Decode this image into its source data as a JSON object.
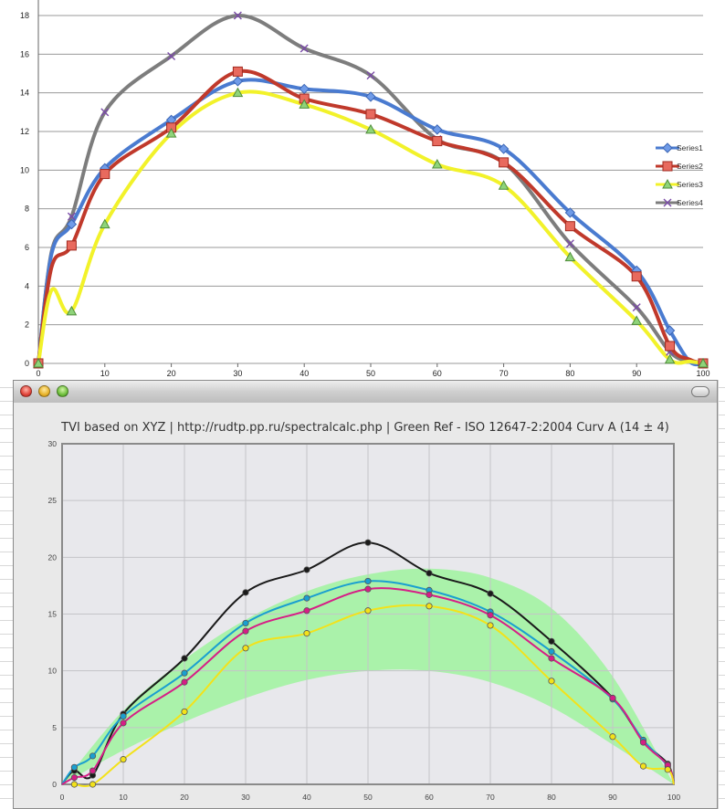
{
  "chart_data": [
    {
      "type": "line",
      "title": "",
      "xlabel": "",
      "ylabel": "",
      "xlim": [
        0,
        100
      ],
      "ylim": [
        0,
        18
      ],
      "x_ticks": [
        "0",
        "10",
        "20",
        "30",
        "40",
        "50",
        "60",
        "70",
        "80",
        "90",
        "100"
      ],
      "y_ticks": [
        "0",
        "2",
        "4",
        "6",
        "8",
        "10",
        "12",
        "14",
        "16",
        "18"
      ],
      "grid": "horizontal",
      "legend": "right",
      "x": [
        0,
        2,
        5,
        10,
        20,
        30,
        40,
        50,
        60,
        70,
        80,
        90,
        95,
        98,
        100
      ],
      "series": [
        {
          "name": "Series1",
          "color": "#4a7bd0",
          "marker": "diamond",
          "values": [
            0,
            5.7,
            7.2,
            10.1,
            12.6,
            14.6,
            14.2,
            13.8,
            12.1,
            11.1,
            7.8,
            4.8,
            1.7,
            0.1,
            0
          ]
        },
        {
          "name": "Series2",
          "color": "#c0392b",
          "marker": "square",
          "values": [
            0,
            5.0,
            6.1,
            9.8,
            12.2,
            15.1,
            13.7,
            12.9,
            11.5,
            10.4,
            7.1,
            4.5,
            0.9,
            0.2,
            0
          ]
        },
        {
          "name": "Series3",
          "color": "#f2f22a",
          "marker": "triangle",
          "values": [
            0,
            3.8,
            2.7,
            7.2,
            11.9,
            14.0,
            13.4,
            12.1,
            10.3,
            9.2,
            5.5,
            2.2,
            0.2,
            0.1,
            0
          ]
        },
        {
          "name": "Series4",
          "color": "#7d7d7d",
          "marker": "x",
          "values": [
            0,
            5.8,
            7.6,
            13.0,
            15.9,
            18.0,
            16.3,
            14.9,
            11.6,
            10.4,
            6.2,
            2.9,
            0.6,
            0.1,
            0
          ]
        }
      ]
    },
    {
      "type": "line",
      "title": "TVI based on XYZ | http://rudtp.pp.ru/spectralcalc.php | Green Ref - ISO 12647-2:2004 Curv A (14 ± 4)",
      "xlabel": "",
      "ylabel": "",
      "xlim": [
        0,
        100
      ],
      "ylim": [
        0,
        30
      ],
      "x_ticks": [
        "0",
        "10",
        "20",
        "30",
        "40",
        "50",
        "60",
        "70",
        "80",
        "90",
        "100"
      ],
      "y_ticks": [
        "0",
        "5",
        "10",
        "15",
        "20",
        "25",
        "30"
      ],
      "grid": "both",
      "band": {
        "color": "#a6f2a6",
        "x": [
          0,
          10,
          20,
          30,
          40,
          50,
          60,
          70,
          80,
          90,
          100
        ],
        "upper": [
          0,
          6.5,
          11.0,
          14.5,
          17.0,
          18.5,
          19.0,
          18.2,
          15.5,
          9.5,
          0
        ],
        "lower": [
          0,
          3.0,
          5.5,
          7.6,
          9.2,
          10.0,
          10.0,
          9.0,
          6.8,
          3.5,
          0
        ]
      },
      "x": [
        0,
        2,
        5,
        10,
        20,
        30,
        40,
        50,
        60,
        70,
        80,
        90,
        95,
        99,
        100
      ],
      "series": [
        {
          "color": "#1a1a1a",
          "values": [
            0,
            1.2,
            0.8,
            6.2,
            11.1,
            16.9,
            18.9,
            21.3,
            18.6,
            16.8,
            12.6,
            7.6,
            3.8,
            1.8,
            0
          ]
        },
        {
          "color": "#1a9fd0",
          "values": [
            0,
            1.5,
            2.5,
            6.0,
            9.8,
            14.2,
            16.4,
            17.9,
            17.1,
            15.2,
            11.7,
            7.5,
            3.9,
            1.6,
            0
          ]
        },
        {
          "color": "#d61e86",
          "values": [
            0,
            0.6,
            1.2,
            5.4,
            9.0,
            13.5,
            15.3,
            17.2,
            16.7,
            14.9,
            11.1,
            7.6,
            3.7,
            1.7,
            0
          ]
        },
        {
          "color": "#f3e21a",
          "values": [
            null,
            0,
            0,
            2.2,
            6.4,
            12.0,
            13.3,
            15.3,
            15.7,
            14.0,
            9.1,
            4.2,
            1.6,
            1.3,
            0
          ]
        }
      ]
    }
  ]
}
